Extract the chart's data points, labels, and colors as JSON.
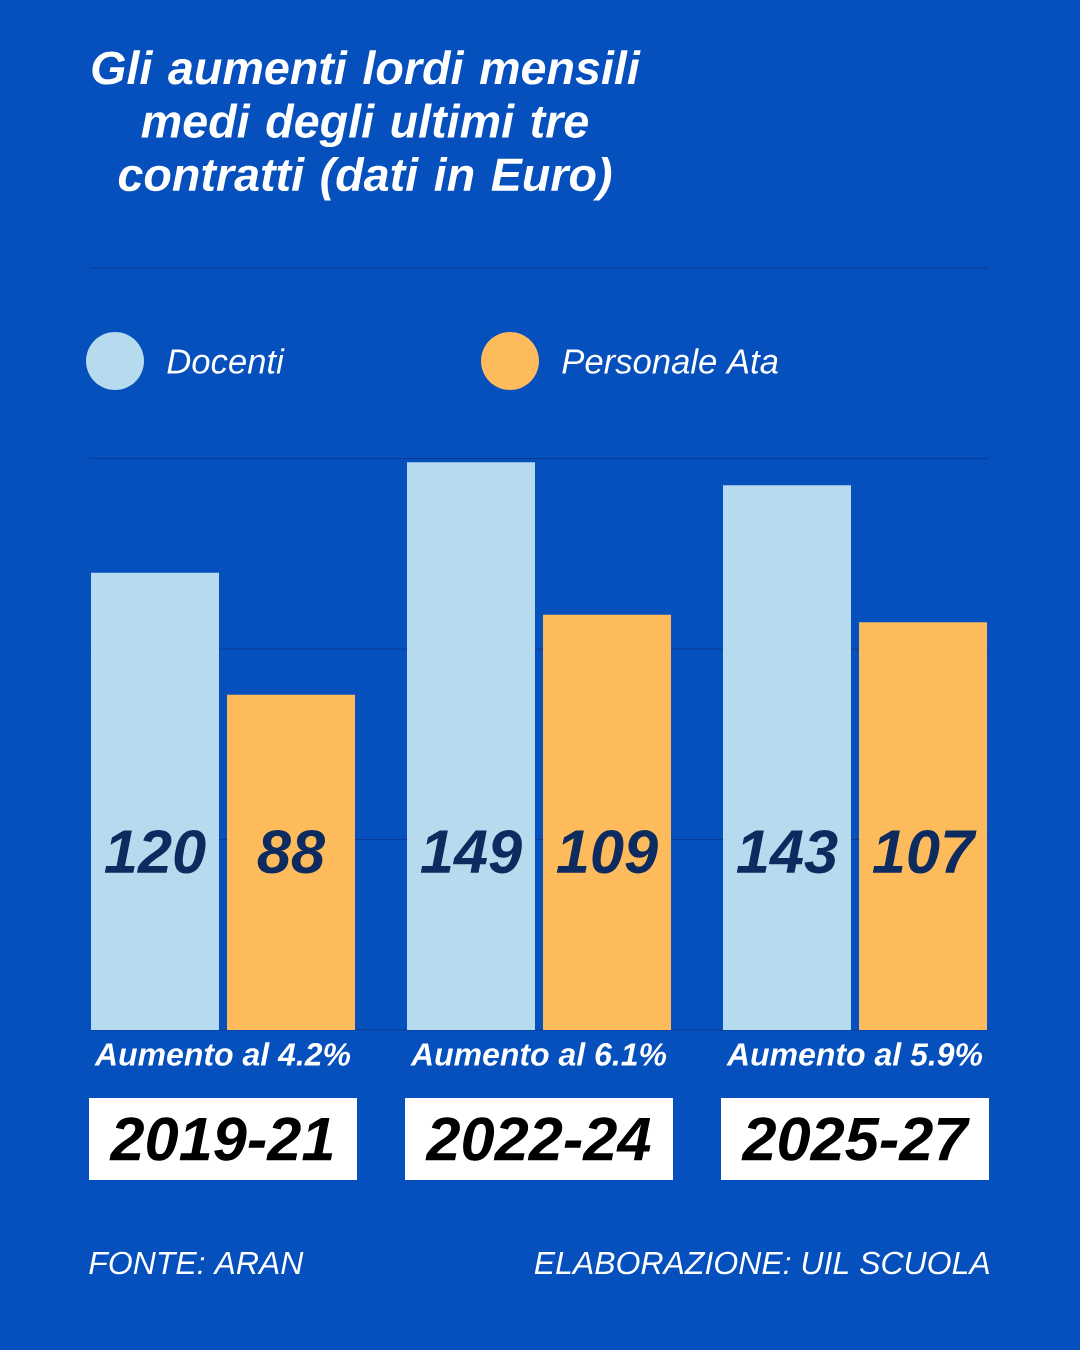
{
  "chart_data": {
    "type": "bar",
    "title": "Gli aumenti lordi mensili medi degli ultimi tre contratti (dati in Euro)",
    "categories": [
      "2019-21",
      "2022-24",
      "2025-27"
    ],
    "series": [
      {
        "name": "Docenti",
        "color": "#b6dbee",
        "values": [
          120,
          149,
          143
        ]
      },
      {
        "name": "Personale Ata",
        "color": "#fdbb5c",
        "values": [
          88,
          109,
          107
        ]
      }
    ],
    "ylim": [
      0,
      200
    ],
    "yticks": [
      {
        "value": 0,
        "label": null
      },
      {
        "value": 50,
        "label": null
      },
      {
        "value": 100,
        "label": null
      },
      {
        "value": 150,
        "label": null
      },
      {
        "value": 200,
        "label": null
      }
    ],
    "grid": "y",
    "legend": "top",
    "tick_labels": "x",
    "data_labels": true,
    "annotations": [
      "Aumento al 4.2%",
      "Aumento al 6.1%",
      "Aumento al 5.9%",
      "FONTE: ARAN",
      "ELABORAZIONE: UIL SCUOLA"
    ]
  }
}
